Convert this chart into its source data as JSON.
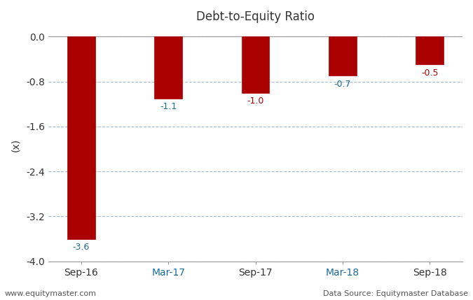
{
  "title": "Debt-to-Equity Ratio",
  "categories": [
    "Sep-16",
    "Mar-17",
    "Sep-17",
    "Mar-18",
    "Sep-18"
  ],
  "values": [
    -3.6,
    -1.1,
    -1.0,
    -0.7,
    -0.5
  ],
  "bar_color": "#aa0000",
  "ylabel": "(x)",
  "ylim": [
    -4.0,
    0.15
  ],
  "yticks": [
    0.0,
    -0.8,
    -1.6,
    -2.4,
    -3.2,
    -4.0
  ],
  "ytick_labels": [
    "0.0",
    "-0.8",
    "-1.6",
    "-2.4",
    "-3.2",
    "-4.0"
  ],
  "xtick_colors": [
    "#333333",
    "#1a6b9a",
    "#333333",
    "#1a6b9a",
    "#333333"
  ],
  "label_colors": [
    "#1a6b9a",
    "#1a6b9a",
    "#aa0000",
    "#1a6b9a",
    "#aa0000"
  ],
  "value_labels": [
    "-3.6",
    "-1.1",
    "-1.0",
    "-0.7",
    "-0.5"
  ],
  "footer_left": "www.equitymaster.com",
  "footer_right": "Data Source: Equitymaster Database",
  "background_color": "#ffffff",
  "grid_color": "#aabbcc",
  "title_fontsize": 12,
  "axis_label_fontsize": 10,
  "tick_fontsize": 10,
  "value_label_fontsize": 9,
  "footer_fontsize": 8,
  "bar_width": 0.32
}
